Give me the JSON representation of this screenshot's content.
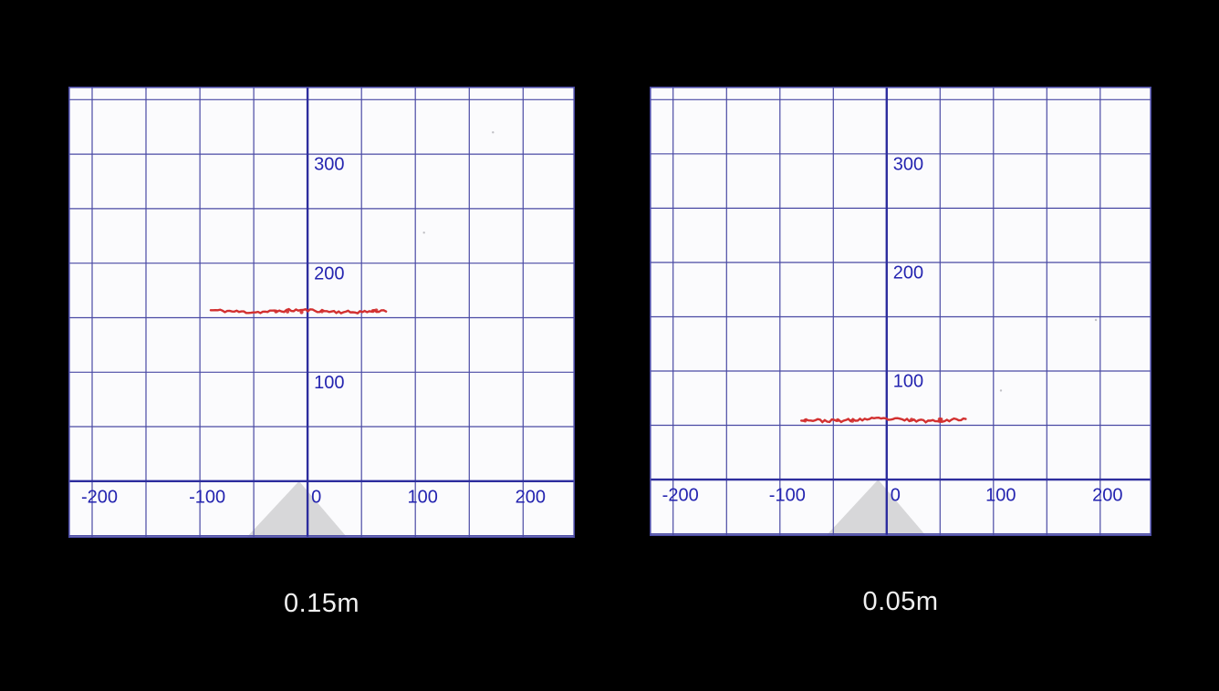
{
  "page": {
    "background": "#000000",
    "caption_color": "#f0f0f0"
  },
  "chart_data": [
    {
      "type": "scatter",
      "title": "0.15m",
      "xlabel": "",
      "ylabel": "",
      "xlim": [
        -222,
        248
      ],
      "ylim": [
        -52,
        362
      ],
      "grid": true,
      "grid_step": 50,
      "x_ticks": [
        -200,
        -100,
        0,
        100,
        200
      ],
      "y_ticks": [
        100,
        200,
        300
      ],
      "legend": "none",
      "colors": {
        "bg": "#fbfbfd",
        "grid": "#4a4aa4",
        "axis": "#2d2d9e",
        "tick_label": "#2424b0",
        "scan": "#d23030",
        "triangle": "#d7d7d9",
        "noise": "#9a9aa0"
      },
      "series": [
        {
          "name": "range-scan",
          "shape": "horizontal-point-cluster",
          "y_mean": 156,
          "x_from": -90,
          "x_to": 74,
          "seed": 11
        }
      ],
      "sensor_fov": {
        "apex_x": -8,
        "apex_y": 0,
        "base_center_x": -10,
        "base_half_width": 47
      },
      "noise_points": [
        [
          172,
          320
        ],
        [
          108,
          228
        ]
      ]
    },
    {
      "type": "scatter",
      "title": "0.05m",
      "xlabel": "",
      "ylabel": "",
      "xlim": [
        -222,
        248
      ],
      "ylim": [
        -52,
        362
      ],
      "grid": true,
      "grid_step": 50,
      "x_ticks": [
        -200,
        -100,
        0,
        100,
        200
      ],
      "y_ticks": [
        100,
        200,
        300
      ],
      "legend": "none",
      "colors": {
        "bg": "#fbfbfd",
        "grid": "#4a4aa4",
        "axis": "#2d2d9e",
        "tick_label": "#2424b0",
        "scan": "#d23030",
        "triangle": "#d7d7d9",
        "noise": "#9a9aa0"
      },
      "series": [
        {
          "name": "range-scan",
          "shape": "horizontal-point-cluster",
          "y_mean": 55,
          "x_from": -80,
          "x_to": 76,
          "seed": 23
        }
      ],
      "sensor_fov": {
        "apex_x": -8,
        "apex_y": 0,
        "base_center_x": -10,
        "base_half_width": 47
      },
      "noise_points": [
        [
          107,
          82
        ],
        [
          196,
          147
        ]
      ]
    }
  ]
}
